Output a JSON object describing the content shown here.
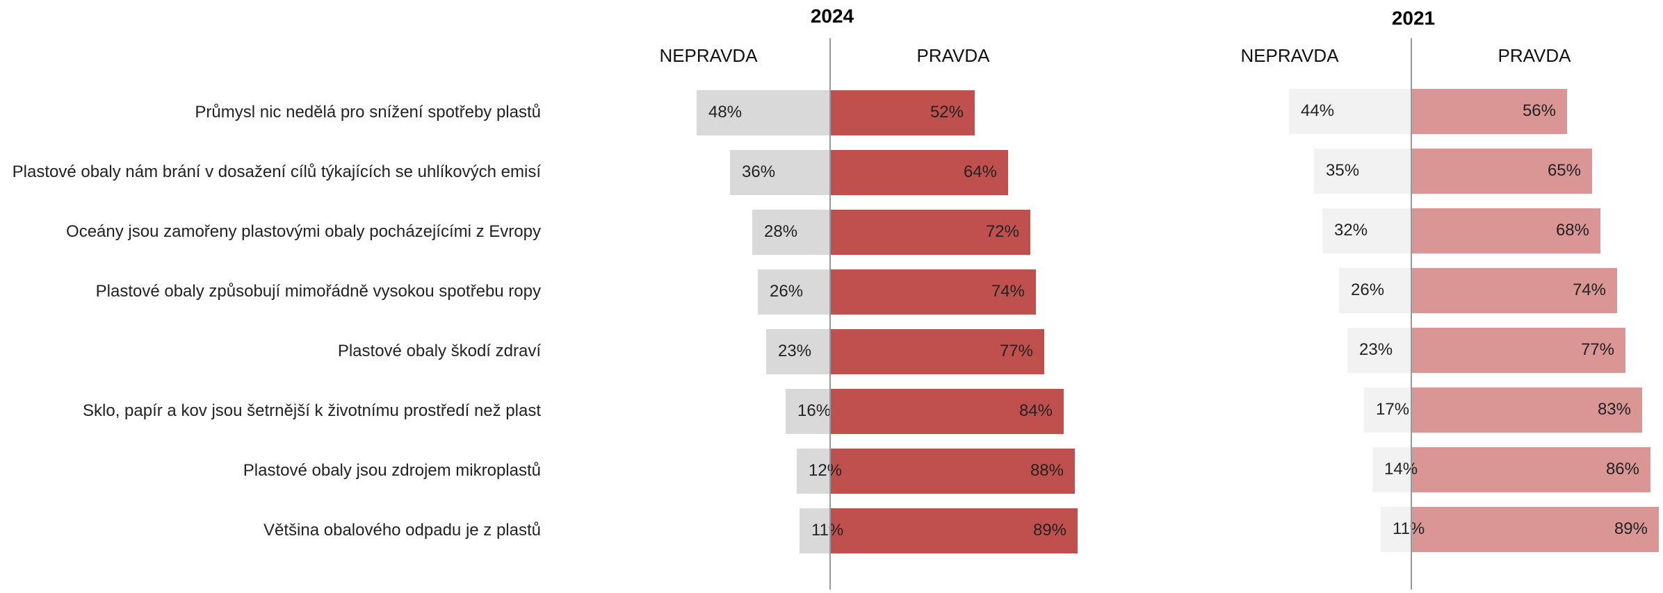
{
  "chart_data": {
    "type": "bar",
    "subtype": "diverging-horizontal",
    "categories": [
      "Průmysl nic nedělá pro snížení spotřeby plastů",
      "Plastové obaly nám brání v dosažení cílů týkajících se uhlíkových emisí",
      "Oceány jsou zamořeny plastovými obaly pocházejícími z Evropy",
      "Plastové obaly způsobují mimořádně vysokou spotřebu ropy",
      "Plastové obaly škodí zdraví",
      "Sklo, papír a kov jsou šetrnější k životnímu prostředí než plast",
      "Plastové obaly jsou zdrojem mikroplastů",
      "Většina obalového odpadu je z plastů"
    ],
    "panels": [
      {
        "title": "2024",
        "left_label": "NEPRAVDA",
        "right_label": "PRAVDA",
        "series": [
          {
            "name": "NEPRAVDA",
            "values": [
              48,
              36,
              28,
              26,
              23,
              16,
              12,
              11
            ],
            "color": "#d9d9d9"
          },
          {
            "name": "PRAVDA",
            "values": [
              52,
              64,
              72,
              74,
              77,
              84,
              88,
              89
            ],
            "color": "#c0504d"
          }
        ]
      },
      {
        "title": "2021",
        "left_label": "NEPRAVDA",
        "right_label": "PRAVDA",
        "series": [
          {
            "name": "NEPRAVDA",
            "values": [
              44,
              35,
              32,
              26,
              23,
              17,
              14,
              11
            ],
            "color": "#f2f2f2"
          },
          {
            "name": "PRAVDA",
            "values": [
              56,
              65,
              68,
              74,
              77,
              83,
              86,
              89
            ],
            "color": "#d99694"
          }
        ]
      }
    ],
    "value_suffix": "%",
    "xlim": [
      -100,
      100
    ],
    "grid": false,
    "legend": "none",
    "divider_color": "#999999"
  }
}
